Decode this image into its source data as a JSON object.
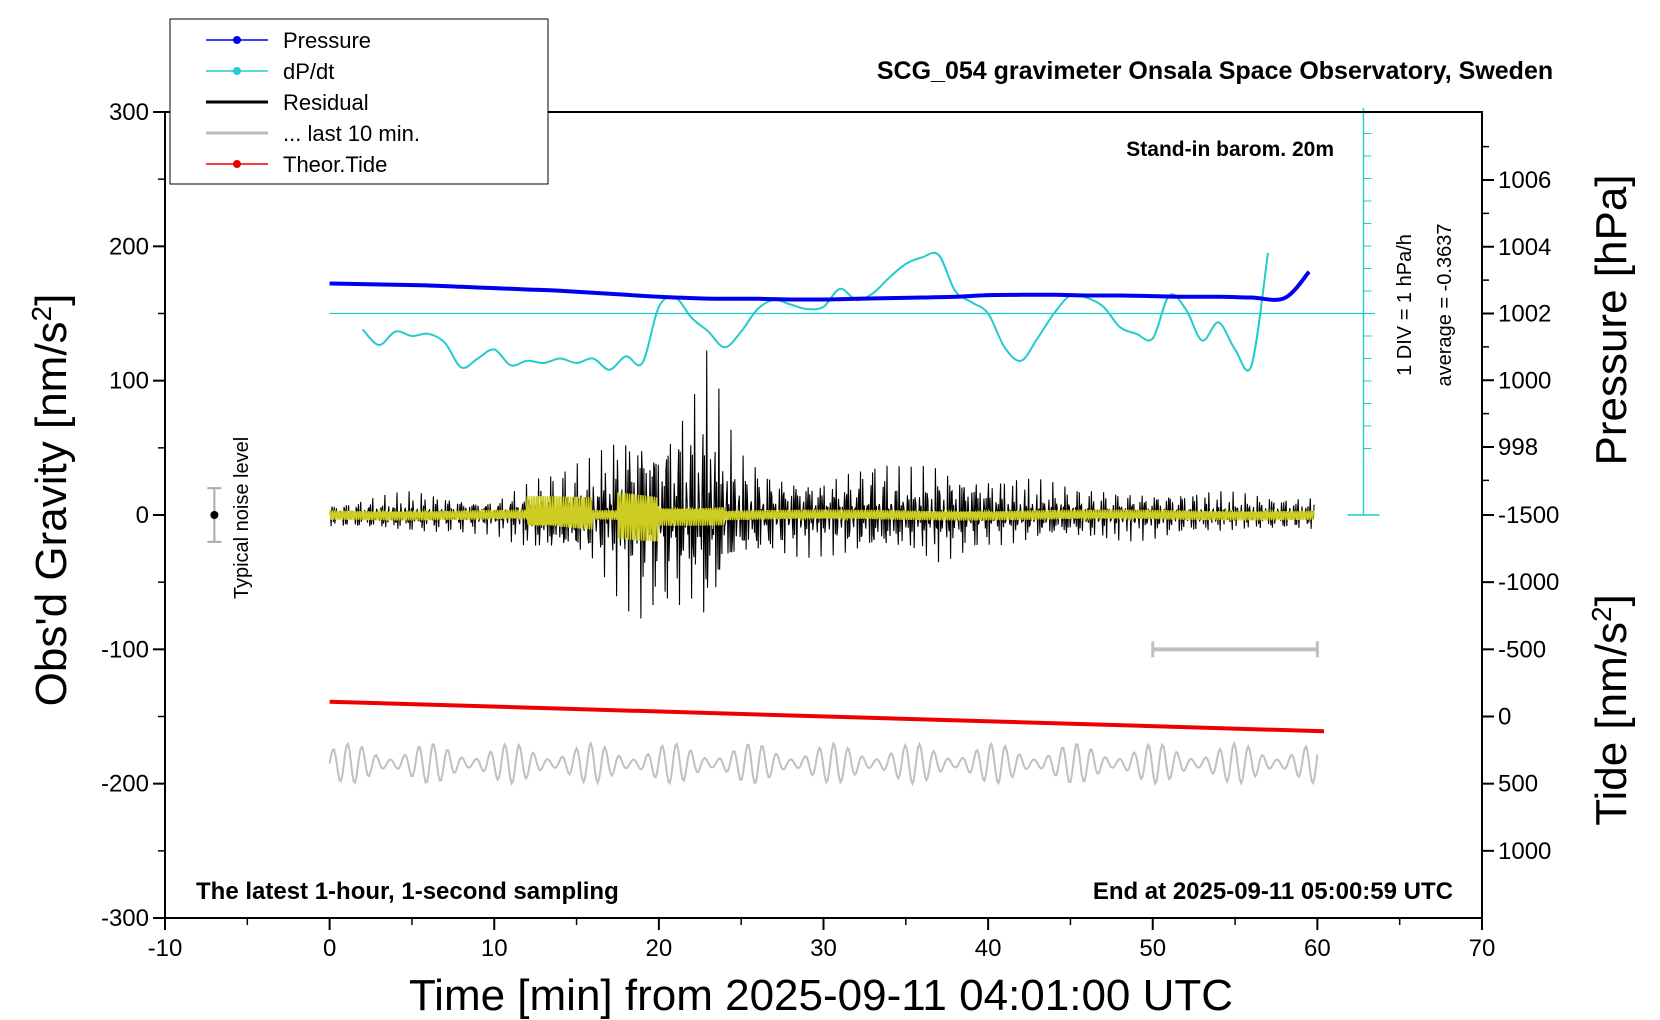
{
  "chart_data": {
    "type": "line",
    "title": "SCG_054 gravimeter Onsala Space Observatory, Sweden",
    "xlabel": "Time [min] from 2025-09-11 04:01:00 UTC",
    "ylabel_left": "Obs'd Gravity [nm/s",
    "ylabel_left_sup": "2",
    "ylabel_left_close": "]",
    "ylabel_right_pressure": "Pressure [hPa]",
    "ylabel_right_tide": "Tide [nm/s",
    "ylabel_right_tide_sup": "2",
    "ylabel_right_tide_close": "]",
    "xlim": [
      -10,
      70
    ],
    "ylim": [
      -300,
      300
    ],
    "pressure_lim": [
      996,
      1008
    ],
    "tide_lim": [
      -1500,
      1500
    ],
    "x_ticks": [
      "-10",
      "0",
      "10",
      "20",
      "30",
      "40",
      "50",
      "60",
      "70"
    ],
    "y_ticks": [
      "-300",
      "-200",
      "-100",
      "0",
      "100",
      "200",
      "300"
    ],
    "pressure_ticks": [
      "998",
      "1000",
      "1002",
      "1004",
      "1006"
    ],
    "tide_ticks": [
      "-1500",
      "-1000",
      "-500",
      "0",
      "500",
      "1000"
    ],
    "grid": false,
    "legend_position": "top-left",
    "legend": [
      {
        "label": "Pressure",
        "color": "#0000ee",
        "marker": true
      },
      {
        "label": "dP/dt",
        "color": "#22cccc",
        "marker": true
      },
      {
        "label": "Residual",
        "color": "#000000",
        "marker": false
      },
      {
        "label": "... last 10 min.",
        "color": "#bbbbbb",
        "marker": false
      },
      {
        "label": "Theor.Tide",
        "color": "#ee0000",
        "marker": true
      }
    ],
    "annotations": {
      "barometer": "Stand-in barom. 20m",
      "latest": "The latest 1-hour, 1-second sampling",
      "end_time": "End at 2025-09-11 05:00:59 UTC",
      "noise": "Typical noise level",
      "dpdt_scale": "1 DIV = 1 hPa/h",
      "dpdt_average": "average = -0.3637"
    },
    "colors": {
      "pressure": "#0000ee",
      "dpdt": "#22cccc",
      "residual": "#000000",
      "residual_filtered": "#cccc22",
      "last10": "#c0c0c0",
      "tide": "#ee0000"
    },
    "series": [
      {
        "name": "Pressure",
        "unit": "hPa",
        "x": [
          0,
          2,
          4,
          6,
          8,
          10,
          12,
          14,
          16,
          18,
          20,
          22,
          24,
          26,
          28,
          30,
          32,
          34,
          36,
          38,
          40,
          42,
          44,
          46,
          48,
          50,
          52,
          54,
          56,
          58,
          59.5
        ],
        "y": [
          1002.9,
          1002.88,
          1002.86,
          1002.84,
          1002.8,
          1002.76,
          1002.72,
          1002.68,
          1002.62,
          1002.56,
          1002.5,
          1002.46,
          1002.44,
          1002.44,
          1002.42,
          1002.42,
          1002.44,
          1002.46,
          1002.48,
          1002.5,
          1002.55,
          1002.56,
          1002.56,
          1002.54,
          1002.54,
          1002.52,
          1002.5,
          1002.5,
          1002.48,
          1002.46,
          1003.25
        ]
      },
      {
        "name": "dP/dt",
        "unit": "hPa/h (1 DIV = 1 hPa/h, zero at 1002 hPa line)",
        "x": [
          2,
          3,
          4,
          5,
          6,
          7,
          8,
          9,
          10,
          11,
          12,
          13,
          14,
          15,
          16,
          17,
          18,
          19,
          20,
          21,
          22,
          23,
          24,
          25,
          26,
          27,
          28,
          29,
          30,
          31,
          32,
          33,
          34,
          35,
          36,
          37,
          38,
          39,
          40,
          41,
          42,
          43,
          44,
          45,
          46,
          47,
          48,
          49,
          50,
          51,
          52,
          53,
          54,
          55,
          56,
          57
        ],
        "y": [
          -0.7,
          -1.4,
          -0.8,
          -1.0,
          -0.9,
          -1.3,
          -2.4,
          -2.0,
          -1.6,
          -2.3,
          -2.1,
          -2.2,
          -2.0,
          -2.2,
          -2.0,
          -2.5,
          -1.9,
          -2.2,
          0.3,
          0.7,
          -0.2,
          -0.8,
          -1.5,
          -0.8,
          0.2,
          0.6,
          0.4,
          0.2,
          0.3,
          1.1,
          0.6,
          0.9,
          1.6,
          2.2,
          2.5,
          2.6,
          1.0,
          0.5,
          0.0,
          -1.5,
          -2.1,
          -1.1,
          0.0,
          0.8,
          0.7,
          0.3,
          -0.6,
          -0.9,
          -1.1,
          0.8,
          0.2,
          -1.2,
          -0.4,
          -1.6,
          -2.3,
          2.7
        ]
      },
      {
        "name": "Residual",
        "unit": "nm/s2",
        "x": [
          0,
          5,
          10,
          13,
          16,
          18,
          19,
          20,
          21,
          22,
          23,
          24,
          25,
          27,
          30,
          33,
          35,
          37,
          40,
          45,
          50,
          55,
          60
        ],
        "y": [
          8,
          15,
          12,
          28,
          40,
          65,
          70,
          62,
          72,
          78,
          105,
          60,
          40,
          32,
          30,
          38,
          30,
          35,
          28,
          20,
          18,
          15,
          12
        ],
        "min": [
          -8,
          -15,
          -12,
          -30,
          -35,
          -60,
          -70,
          -65,
          -72,
          -68,
          -95,
          -55,
          -38,
          -28,
          -25,
          -30,
          -28,
          -34,
          -22,
          -18,
          -16,
          -12,
          -10
        ]
      },
      {
        "name": "... last 10 min.",
        "unit": "nm/s2",
        "x": [
          0,
          60
        ],
        "y": [
          -185,
          -185
        ],
        "amplitude": 15
      },
      {
        "name": "Theor.Tide",
        "unit": "nm/s2",
        "x": [
          0,
          60.4
        ],
        "y": [
          -110,
          110
        ]
      }
    ],
    "scale_bar_x": [
      50,
      60
    ]
  }
}
